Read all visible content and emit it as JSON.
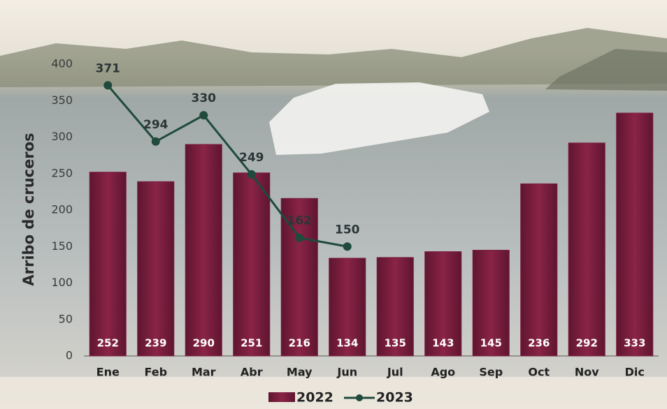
{
  "chart_data": {
    "type": "bar",
    "y_label": "Arribo de cruceros",
    "categories": [
      "Ene",
      "Feb",
      "Mar",
      "Abr",
      "May",
      "Jun",
      "Jul",
      "Ago",
      "Sep",
      "Oct",
      "Nov",
      "Dic"
    ],
    "series": [
      {
        "name": "2022",
        "type": "bar",
        "color": "#7b1e3e",
        "values": [
          252,
          239,
          290,
          251,
          216,
          134,
          135,
          143,
          145,
          236,
          292,
          333
        ]
      },
      {
        "name": "2023",
        "type": "line",
        "color": "#1f4a3c",
        "values": [
          371,
          294,
          330,
          249,
          162,
          150,
          null,
          null,
          null,
          null,
          null,
          null
        ]
      }
    ],
    "ylim": [
      0,
      400
    ],
    "yticks": [
      0,
      50,
      100,
      150,
      200,
      250,
      300,
      350,
      400
    ],
    "grid": false
  }
}
